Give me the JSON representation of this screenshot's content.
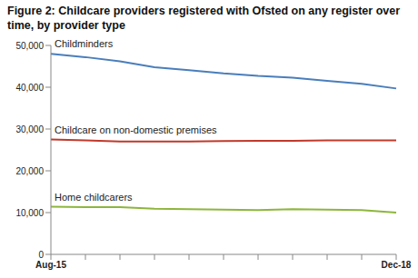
{
  "chart_data": {
    "type": "line",
    "title": "Figure 2: Childcare providers registered with Ofsted on any register over time, by provider type",
    "categories": [
      "Aug-15",
      null,
      null,
      null,
      null,
      null,
      null,
      null,
      null,
      null,
      "Dec-18"
    ],
    "series": [
      {
        "name": "Childminders",
        "color": "#4a7ebb",
        "values": [
          48000,
          47200,
          46200,
          44800,
          44100,
          43300,
          42700,
          42300,
          41500,
          40800,
          39700
        ]
      },
      {
        "name": "Childcare on non-domestic premises",
        "color": "#c0392b",
        "values": [
          27500,
          27300,
          27000,
          27000,
          27000,
          27100,
          27200,
          27200,
          27300,
          27300,
          27300
        ]
      },
      {
        "name": "Home childcarers",
        "color": "#8db63c",
        "values": [
          11400,
          11300,
          11300,
          10900,
          10800,
          10700,
          10600,
          10800,
          10700,
          10600,
          10000
        ]
      }
    ],
    "ylim": [
      0,
      50000
    ],
    "yticks": [
      0,
      {
        "value": 10000,
        "label": "10,000"
      },
      {
        "value": 20000,
        "label": "20,000"
      },
      {
        "value": 30000,
        "label": "30,000"
      },
      {
        "value": 40000,
        "label": "40,000"
      },
      {
        "value": 50000,
        "label": "50,000"
      }
    ],
    "grid": false
  }
}
